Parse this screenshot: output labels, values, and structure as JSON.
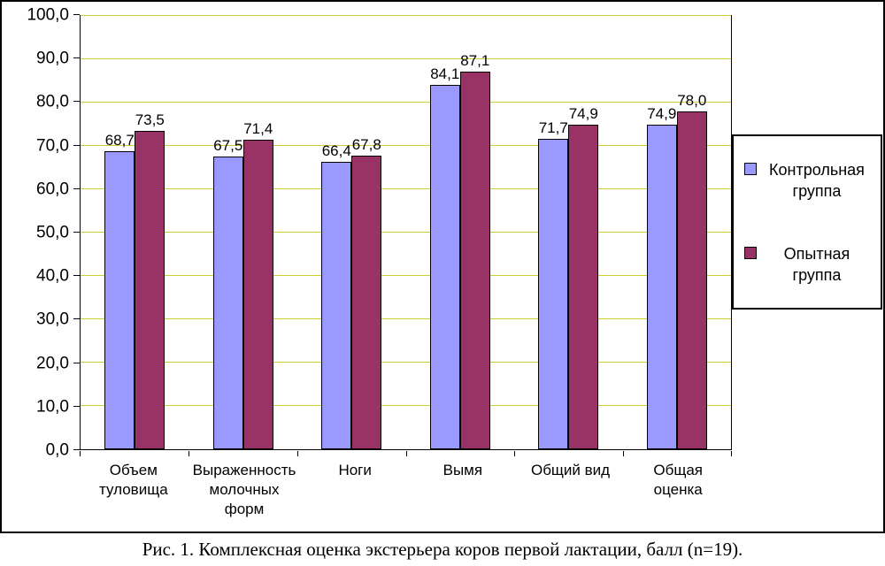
{
  "caption": "Рис. 1. Комплексная оценка экстерьера коров первой лактации, балл (n=19).",
  "chart_data": {
    "type": "bar",
    "title": "",
    "xlabel": "",
    "ylabel": "",
    "categories": [
      "Объем туловища",
      "Выраженность молочных форм",
      "Ноги",
      "Вымя",
      "Общий вид",
      "Общая оценка"
    ],
    "series": [
      {
        "name": "Контрольная группа",
        "color": "#9999ff",
        "values": [
          68.7,
          67.5,
          66.4,
          84.1,
          71.7,
          74.9
        ],
        "labels": [
          "68,7",
          "67,5",
          "66,4",
          "84,1",
          "71,7",
          "74,9"
        ]
      },
      {
        "name": "Опытная группа",
        "color": "#993366",
        "values": [
          73.5,
          71.4,
          67.8,
          87.1,
          74.9,
          78.0
        ],
        "labels": [
          "73,5",
          "71,4",
          "67,8",
          "87,1",
          "74,9",
          "78,0"
        ]
      }
    ],
    "ylim": [
      0,
      100
    ],
    "ytick_step": 10,
    "ytick_labels": [
      "0,0",
      "10,0",
      "20,0",
      "30,0",
      "40,0",
      "50,0",
      "60,0",
      "70,0",
      "80,0",
      "90,0",
      "100,0"
    ],
    "grid": true,
    "gridline_color": "#cccc33",
    "legend_position": "right"
  }
}
